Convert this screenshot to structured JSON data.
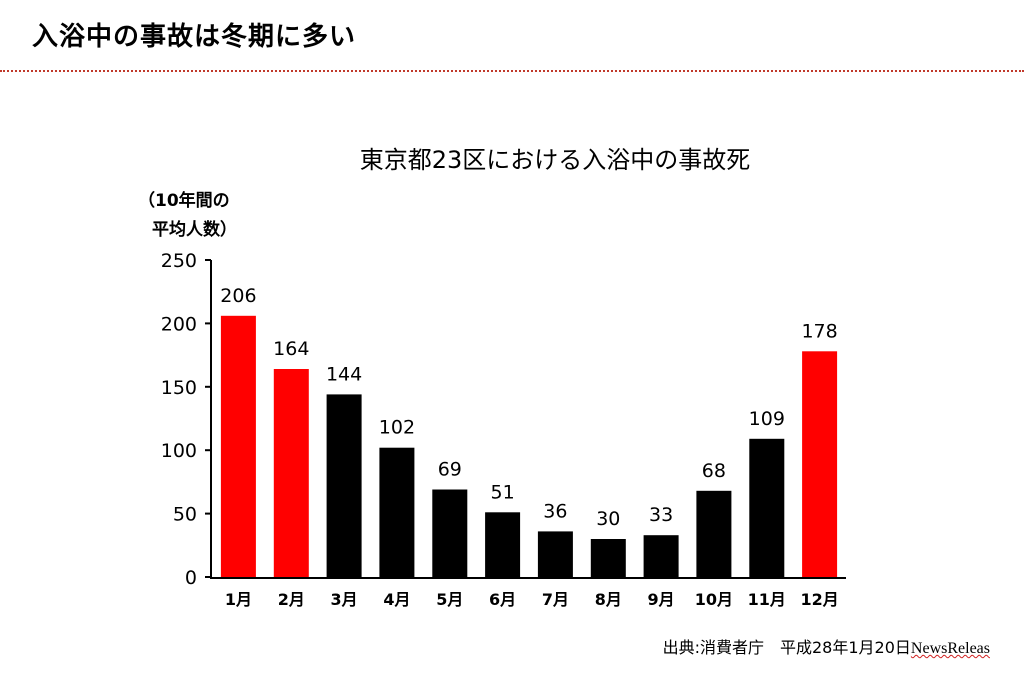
{
  "slide": {
    "title": "入浴中の事故は冬期に多い",
    "accent_color": "#c0392b"
  },
  "chart_data": {
    "type": "bar",
    "title": "東京都23区における入浴中の事故死",
    "ylabel_line1": "（10年間の",
    "ylabel_line2": "平均人数）",
    "xlabel": "",
    "categories": [
      "1月",
      "2月",
      "3月",
      "4月",
      "5月",
      "6月",
      "7月",
      "8月",
      "9月",
      "10月",
      "11月",
      "12月"
    ],
    "values": [
      206,
      164,
      144,
      102,
      69,
      51,
      36,
      30,
      33,
      68,
      109,
      178
    ],
    "bar_colors": [
      "#ff0000",
      "#ff0000",
      "#000000",
      "#000000",
      "#000000",
      "#000000",
      "#000000",
      "#000000",
      "#000000",
      "#000000",
      "#000000",
      "#ff0000"
    ],
    "ylim": [
      0,
      250
    ],
    "yticks": [
      0,
      50,
      100,
      150,
      200,
      250
    ],
    "grid": false,
    "legend": "none"
  },
  "source": {
    "label": "出典:",
    "text": "消費者庁　平成28年1月20日",
    "underlined": "NewsReleas"
  }
}
